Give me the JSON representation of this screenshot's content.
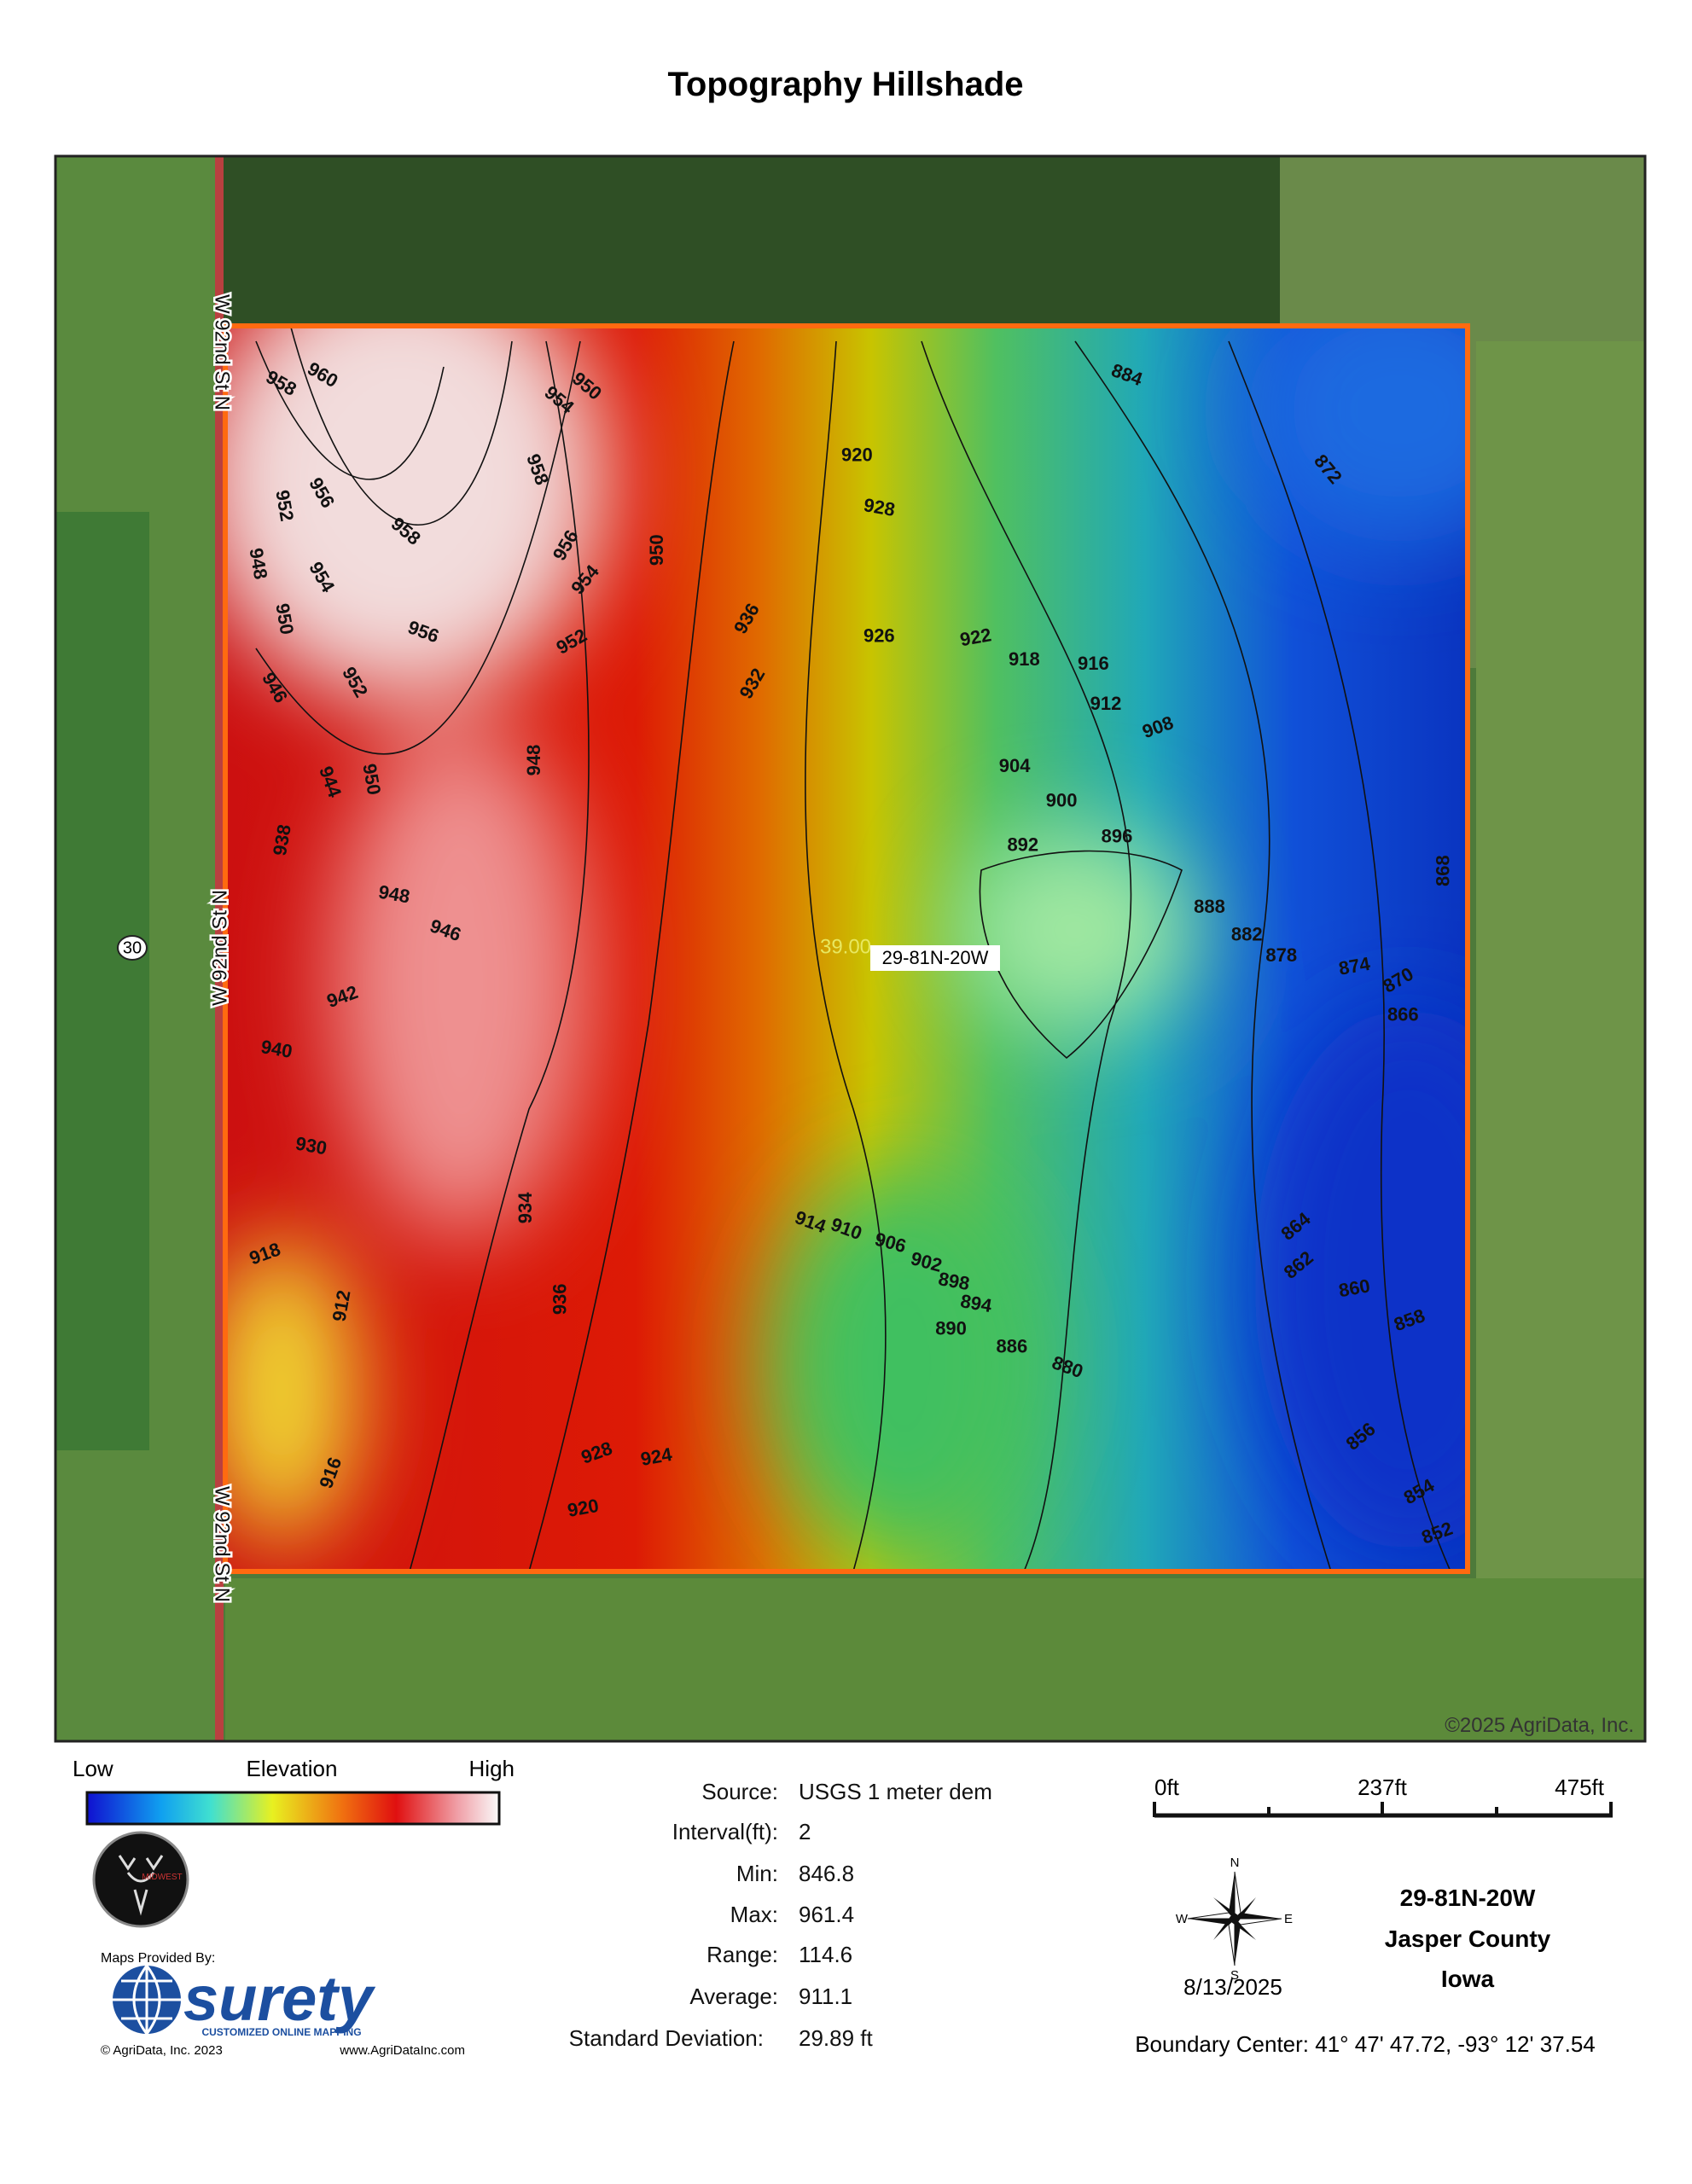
{
  "header": {
    "title": "Topography Hillshade"
  },
  "map": {
    "road_labels": [
      "W 92nd St N",
      "W 92nd St N",
      "W 92nd St N"
    ],
    "highway_shield": "30",
    "field_acres": "39.00",
    "field_label": "29-81N-20W",
    "copyright": "©2025 AgriData, Inc.",
    "contour_labels": [
      960,
      958,
      958,
      958,
      956,
      956,
      956,
      954,
      954,
      954,
      952,
      952,
      952,
      950,
      950,
      950,
      950,
      948,
      948,
      948,
      946,
      946,
      944,
      942,
      940,
      938,
      936,
      934,
      932,
      930,
      928,
      926,
      922,
      920,
      918,
      916,
      912,
      908,
      904,
      900,
      896,
      892,
      888,
      884,
      882,
      878,
      874,
      870,
      866,
      864,
      862,
      860,
      858,
      856,
      854,
      852,
      872,
      868,
      914,
      910,
      906,
      902,
      898,
      894,
      890,
      886,
      880,
      912,
      916,
      918,
      920,
      924,
      928,
      936
    ]
  },
  "legend": {
    "low": "Low",
    "title": "Elevation",
    "high": "High"
  },
  "stats": {
    "rows": [
      [
        "Source:",
        "USGS 1 meter dem"
      ],
      [
        "Interval(ft):",
        "2"
      ],
      [
        "Min:",
        "846.8"
      ],
      [
        "Max:",
        "961.4"
      ],
      [
        "Range:",
        "114.6"
      ],
      [
        "Average:",
        "911.1"
      ],
      [
        "Standard Deviation:",
        "29.89 ft"
      ]
    ]
  },
  "scale_bar": {
    "labels": [
      "0ft",
      "237ft",
      "475ft"
    ]
  },
  "compass": {
    "n": "N",
    "s": "S",
    "e": "E",
    "w": "W"
  },
  "date": "8/13/2025",
  "location": {
    "lines": [
      "29-81N-20W",
      "Jasper County",
      "Iowa"
    ],
    "boundary_center": "Boundary Center: 41° 47' 47.72,  -93° 12' 37.54"
  },
  "logo": {
    "badge": "MIDWEST",
    "provided_by": "Maps Provided By:",
    "brand": "surety",
    "tagline": "CUSTOMIZED ONLINE MAPPING",
    "copyright": "© AgriData, Inc. 2023",
    "url": "www.AgriDataInc.com"
  }
}
